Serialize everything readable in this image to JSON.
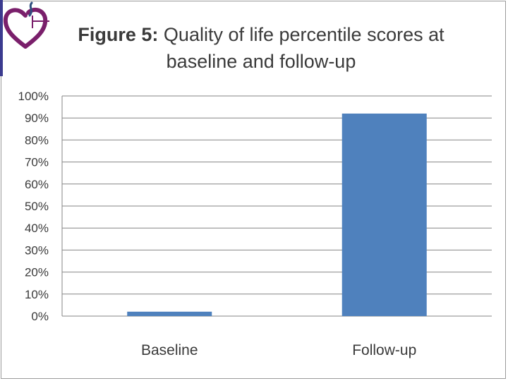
{
  "title": {
    "prefix": "Figure 5:",
    "line1": "Quality of life percentile scores at",
    "line2": "baseline and follow-up"
  },
  "logo": {
    "icon": "heart-ribbon-logo",
    "colors": [
      "#7a1f6b",
      "#2f4f7f"
    ]
  },
  "colors": {
    "bar": "#4f81bd",
    "grid": "#868686",
    "axis": "#868686",
    "text": "#3a3a3a"
  },
  "chart_data": {
    "type": "bar",
    "categories": [
      "Baseline",
      "Follow-up"
    ],
    "values": [
      2,
      92
    ],
    "ylim": [
      0,
      100
    ],
    "yticks": [
      0,
      10,
      20,
      30,
      40,
      50,
      60,
      70,
      80,
      90,
      100
    ],
    "ytick_labels": [
      "0%",
      "10%",
      "20%",
      "30%",
      "40%",
      "50%",
      "60%",
      "70%",
      "80%",
      "90%",
      "100%"
    ],
    "grid": true,
    "legend": "none"
  }
}
